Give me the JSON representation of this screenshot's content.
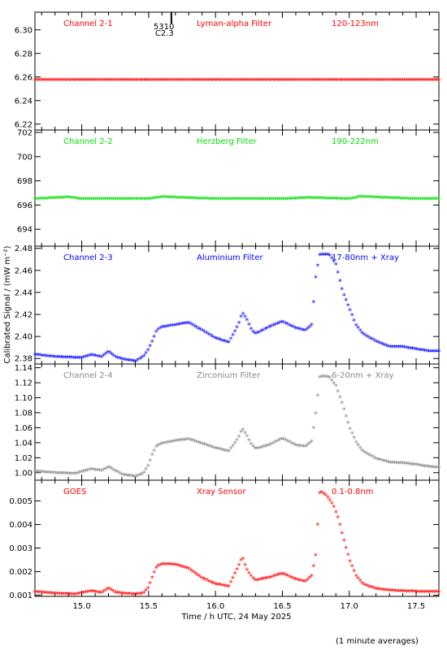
{
  "chart_data": {
    "type": "scatter",
    "xlabel": "Time / h UTC, 24 May 2025",
    "ylabel": "Calibrated Signal / (mW m⁻²)",
    "footnote": "(1 minute averages)",
    "xlim": [
      14.65,
      17.67
    ],
    "xticks": [
      "15.0",
      "15.5",
      "16.0",
      "16.5",
      "17.0",
      "17.5"
    ],
    "panels": [
      {
        "channel": "Channel 2-1",
        "filter": "Lyman-alpha Filter",
        "band": "120-123nm",
        "color": "#ff0000",
        "ylim": [
          6.215,
          6.315
        ],
        "yticks": [
          "6.22",
          "6.24",
          "6.26",
          "6.28",
          "6.30"
        ],
        "annotation": {
          "text1": "5310",
          "text2": "C2.3",
          "x": 15.67
        },
        "points": [
          [
            14.65,
            6.257
          ],
          [
            15.0,
            6.257
          ],
          [
            15.5,
            6.257
          ],
          [
            16.0,
            6.257
          ],
          [
            16.5,
            6.257
          ],
          [
            17.0,
            6.257
          ],
          [
            17.5,
            6.257
          ],
          [
            17.67,
            6.257
          ]
        ]
      },
      {
        "channel": "Channel 2-2",
        "filter": "Herzberg Filter",
        "band": "190-222nm",
        "color": "#00dd00",
        "ylim": [
          692.6,
          702.2
        ],
        "yticks": [
          "694",
          "696",
          "698",
          "700",
          "702"
        ],
        "points": [
          [
            14.65,
            696.45
          ],
          [
            14.9,
            696.6
          ],
          [
            15.0,
            696.45
          ],
          [
            15.5,
            696.45
          ],
          [
            15.6,
            696.62
          ],
          [
            16.0,
            696.45
          ],
          [
            16.5,
            696.45
          ],
          [
            16.7,
            696.55
          ],
          [
            17.0,
            696.45
          ],
          [
            17.08,
            696.65
          ],
          [
            17.5,
            696.45
          ],
          [
            17.67,
            696.45
          ]
        ]
      },
      {
        "channel": "Channel 2-3",
        "filter": "Aluminium Filter",
        "band": "17-80nm + Xray",
        "color": "#0000ff",
        "ylim": [
          2.375,
          2.482
        ],
        "yticks": [
          "2.38",
          "2.40",
          "2.42",
          "2.44",
          "2.46",
          "2.48"
        ],
        "points": [
          [
            14.65,
            2.383
          ],
          [
            14.8,
            2.381
          ],
          [
            15.0,
            2.38
          ],
          [
            15.07,
            2.383
          ],
          [
            15.15,
            2.381
          ],
          [
            15.2,
            2.386
          ],
          [
            15.25,
            2.381
          ],
          [
            15.3,
            2.379
          ],
          [
            15.4,
            2.377
          ],
          [
            15.46,
            2.381
          ],
          [
            15.5,
            2.388
          ],
          [
            15.53,
            2.396
          ],
          [
            15.56,
            2.405
          ],
          [
            15.6,
            2.408
          ],
          [
            15.7,
            2.41
          ],
          [
            15.8,
            2.412
          ],
          [
            15.9,
            2.405
          ],
          [
            16.0,
            2.398
          ],
          [
            16.1,
            2.394
          ],
          [
            16.17,
            2.41
          ],
          [
            16.2,
            2.421
          ],
          [
            16.23,
            2.416
          ],
          [
            16.27,
            2.405
          ],
          [
            16.3,
            2.402
          ],
          [
            16.4,
            2.408
          ],
          [
            16.5,
            2.413
          ],
          [
            16.6,
            2.407
          ],
          [
            16.67,
            2.405
          ],
          [
            16.72,
            2.41
          ],
          [
            16.75,
            2.455
          ],
          [
            16.78,
            2.474
          ],
          [
            16.85,
            2.474
          ],
          [
            16.9,
            2.465
          ],
          [
            16.95,
            2.44
          ],
          [
            17.0,
            2.425
          ],
          [
            17.05,
            2.41
          ],
          [
            17.1,
            2.402
          ],
          [
            17.2,
            2.395
          ],
          [
            17.3,
            2.39
          ],
          [
            17.4,
            2.39
          ],
          [
            17.5,
            2.388
          ],
          [
            17.6,
            2.386
          ],
          [
            17.67,
            2.386
          ]
        ]
      },
      {
        "channel": "Channel 2-4",
        "filter": "Zirconium Filter",
        "band": "6-20nm + Xray",
        "color": "#888888",
        "ylim": [
          0.99,
          1.145
        ],
        "yticks": [
          "1.00",
          "1.02",
          "1.04",
          "1.06",
          "1.08",
          "1.10",
          "1.12",
          "1.14"
        ],
        "points": [
          [
            14.65,
            1.001
          ],
          [
            14.8,
            0.999
          ],
          [
            14.95,
            0.998
          ],
          [
            15.07,
            1.004
          ],
          [
            15.15,
            1.002
          ],
          [
            15.2,
            1.007
          ],
          [
            15.25,
            1.002
          ],
          [
            15.3,
            0.997
          ],
          [
            15.4,
            0.994
          ],
          [
            15.46,
            0.998
          ],
          [
            15.5,
            1.01
          ],
          [
            15.53,
            1.025
          ],
          [
            15.56,
            1.035
          ],
          [
            15.6,
            1.038
          ],
          [
            15.7,
            1.042
          ],
          [
            15.8,
            1.044
          ],
          [
            15.9,
            1.038
          ],
          [
            16.0,
            1.032
          ],
          [
            16.1,
            1.028
          ],
          [
            16.17,
            1.045
          ],
          [
            16.2,
            1.058
          ],
          [
            16.23,
            1.05
          ],
          [
            16.27,
            1.036
          ],
          [
            16.3,
            1.031
          ],
          [
            16.4,
            1.036
          ],
          [
            16.5,
            1.045
          ],
          [
            16.6,
            1.036
          ],
          [
            16.67,
            1.034
          ],
          [
            16.72,
            1.041
          ],
          [
            16.75,
            1.08
          ],
          [
            16.78,
            1.128
          ],
          [
            16.85,
            1.127
          ],
          [
            16.9,
            1.115
          ],
          [
            16.95,
            1.09
          ],
          [
            17.0,
            1.06
          ],
          [
            17.05,
            1.04
          ],
          [
            17.1,
            1.028
          ],
          [
            17.2,
            1.018
          ],
          [
            17.3,
            1.013
          ],
          [
            17.4,
            1.012
          ],
          [
            17.5,
            1.01
          ],
          [
            17.6,
            1.007
          ],
          [
            17.67,
            1.006
          ]
        ]
      },
      {
        "channel": "GOES",
        "filter": "Xray Sensor",
        "band": "0.1-0.8nm",
        "color": "#ff0000",
        "ylim": [
          0.00095,
          0.00588
        ],
        "yticks": [
          "0.001",
          "0.002",
          "0.003",
          "0.004",
          "0.005"
        ],
        "points": [
          [
            14.65,
            0.00112
          ],
          [
            14.8,
            0.00105
          ],
          [
            14.95,
            0.00102
          ],
          [
            15.07,
            0.00115
          ],
          [
            15.15,
            0.00108
          ],
          [
            15.2,
            0.00128
          ],
          [
            15.25,
            0.0011
          ],
          [
            15.3,
            0.00105
          ],
          [
            15.4,
            0.00102
          ],
          [
            15.46,
            0.00106
          ],
          [
            15.5,
            0.0013
          ],
          [
            15.53,
            0.0018
          ],
          [
            15.56,
            0.0022
          ],
          [
            15.6,
            0.0023
          ],
          [
            15.7,
            0.00228
          ],
          [
            15.8,
            0.0021
          ],
          [
            15.9,
            0.0017
          ],
          [
            16.0,
            0.00145
          ],
          [
            16.1,
            0.00135
          ],
          [
            16.17,
            0.0022
          ],
          [
            16.2,
            0.0026
          ],
          [
            16.23,
            0.0021
          ],
          [
            16.27,
            0.00175
          ],
          [
            16.3,
            0.0016
          ],
          [
            16.4,
            0.00172
          ],
          [
            16.5,
            0.0019
          ],
          [
            16.6,
            0.00165
          ],
          [
            16.67,
            0.00155
          ],
          [
            16.72,
            0.0018
          ],
          [
            16.75,
            0.0027
          ],
          [
            16.78,
            0.0054
          ],
          [
            16.83,
            0.0052
          ],
          [
            16.88,
            0.0048
          ],
          [
            16.92,
            0.0042
          ],
          [
            16.95,
            0.0035
          ],
          [
            17.0,
            0.0025
          ],
          [
            17.05,
            0.0018
          ],
          [
            17.1,
            0.00145
          ],
          [
            17.2,
            0.00125
          ],
          [
            17.3,
            0.00118
          ],
          [
            17.4,
            0.00115
          ],
          [
            17.5,
            0.00113
          ],
          [
            17.6,
            0.00112
          ],
          [
            17.67,
            0.00112
          ]
        ]
      }
    ]
  }
}
